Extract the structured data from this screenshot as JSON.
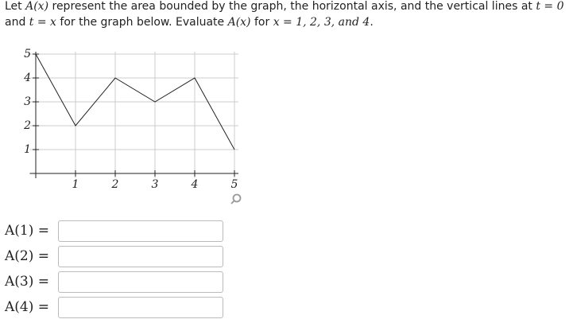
{
  "prompt": {
    "lines": [
      [
        "Let ",
        "A(x)",
        " represent the area bounded by the graph, the horizontal axis, and the vertical lines at ",
        "t = 0"
      ],
      [
        "and ",
        "t = x",
        " for the graph below. Evaluate ",
        "A(x)",
        " for ",
        "x = 1, 2, 3, and 4",
        "."
      ]
    ]
  },
  "chart_data": {
    "type": "line",
    "x": [
      0,
      1,
      2,
      3,
      4,
      5
    ],
    "y": [
      5,
      2,
      4,
      3,
      4,
      1
    ],
    "color": "#222222",
    "xlim": [
      -0.15,
      5.1
    ],
    "ylim": [
      -0.2,
      5.1
    ],
    "xticks": [
      1,
      2,
      3,
      4,
      5
    ],
    "yticks": [
      1,
      2,
      3,
      4,
      5
    ],
    "grid": true
  },
  "answers": [
    "A(1) =",
    "A(2) =",
    "A(3) =",
    "A(4) ="
  ]
}
